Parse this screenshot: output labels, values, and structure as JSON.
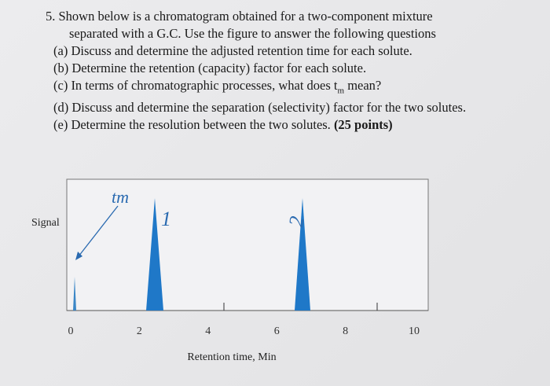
{
  "question": {
    "number": "5.",
    "lines": [
      "Shown below is a chromatogram obtained for a two-component mixture",
      "separated with a G.C. Use the figure to answer the following questions",
      "(a) Discuss and determine the adjusted retention time for each solute.",
      "(b) Determine the retention (capacity) factor for each solute.",
      "(d) Discuss and determine the separation (selectivity) factor for the two solutes.",
      "(e) Determine the resolution between the two solutes."
    ],
    "part_c": {
      "before": "(c) In terms of chromatographic processes, what does t",
      "subscript": "m",
      "after": " mean?"
    },
    "points": "(25 points)"
  },
  "figure": {
    "y_label": "Signal",
    "x_label": "Retention time, Min",
    "xticks": [
      0,
      2,
      4,
      6,
      8,
      10
    ],
    "annotation_tm": "tm",
    "peak_labels": [
      "1",
      "2"
    ]
  }
}
